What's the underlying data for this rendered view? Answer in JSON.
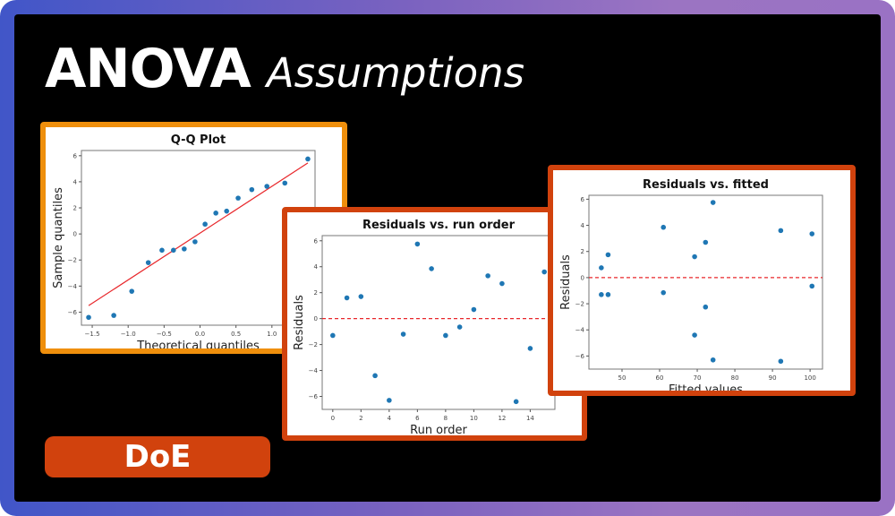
{
  "header": {
    "title_bold": "ANOVA",
    "title_italic": "Assumptions"
  },
  "badge": {
    "label": "DoE"
  },
  "colors": {
    "qq_border": "#ef8f0c",
    "residual_border": "#d1420d",
    "point": "#1f77b4",
    "reference_line": "#e8272b",
    "badge": "#d1420d"
  },
  "chart_data": [
    {
      "id": "qq",
      "type": "scatter",
      "title": "Q-Q Plot",
      "xlabel": "Theoretical quantiles",
      "ylabel": "Sample quantiles",
      "xlim": [
        -1.65,
        1.6
      ],
      "ylim": [
        -7,
        6.4
      ],
      "xticks": [
        -1.5,
        -1.0,
        -0.5,
        0.0,
        0.5,
        1.0
      ],
      "xtick_labels": [
        "−1.5",
        "−1.0",
        "−0.5",
        "0.0",
        "0.5",
        "1.0"
      ],
      "yticks": [
        -6,
        -4,
        -2,
        0,
        2,
        4,
        6
      ],
      "ytick_labels": [
        "−6",
        "−4",
        "−2",
        "0",
        "2",
        "4",
        "6"
      ],
      "x": [
        -1.55,
        -1.2,
        -0.95,
        -0.72,
        -0.53,
        -0.37,
        -0.22,
        -0.07,
        0.07,
        0.22,
        0.37,
        0.53,
        0.72,
        0.93,
        1.18,
        1.5
      ],
      "y": [
        -6.4,
        -6.25,
        -4.4,
        -2.2,
        -1.25,
        -1.25,
        -1.15,
        -0.6,
        0.75,
        1.6,
        1.75,
        2.75,
        3.4,
        3.65,
        3.9,
        5.75
      ],
      "reference_line": {
        "style": "solid",
        "points": [
          [
            -1.55,
            -5.5
          ],
          [
            1.5,
            5.45
          ]
        ]
      },
      "grid": false
    },
    {
      "id": "run_order",
      "type": "scatter",
      "title": "Residuals vs. run order",
      "xlabel": "Run order",
      "ylabel": "Residuals",
      "xlim": [
        -0.75,
        15.75
      ],
      "ylim": [
        -7,
        6.4
      ],
      "xticks": [
        0,
        2,
        4,
        6,
        8,
        10,
        12,
        14
      ],
      "xtick_labels": [
        "0",
        "2",
        "4",
        "6",
        "8",
        "10",
        "12",
        "14"
      ],
      "yticks": [
        -6,
        -4,
        -2,
        0,
        2,
        4,
        6
      ],
      "ytick_labels": [
        "−6",
        "−4",
        "−2",
        "0",
        "2",
        "4",
        "6"
      ],
      "x": [
        0,
        1,
        2,
        3,
        4,
        5,
        6,
        7,
        8,
        9,
        10,
        11,
        12,
        13,
        14,
        15
      ],
      "y": [
        -1.3,
        1.6,
        1.7,
        -4.4,
        -6.3,
        -1.2,
        5.75,
        3.85,
        -1.3,
        -0.65,
        0.7,
        3.3,
        2.7,
        -6.4,
        -2.3,
        3.6
      ],
      "reference_line": {
        "style": "dashed",
        "y": 0
      },
      "grid": false
    },
    {
      "id": "fitted",
      "type": "scatter",
      "title": "Residuals vs. fitted",
      "xlabel": "Fitted values",
      "ylabel": "Residuals",
      "xlim": [
        41.2,
        103.3
      ],
      "ylim": [
        -7,
        6.3
      ],
      "xticks": [
        50,
        60,
        70,
        80,
        90,
        100
      ],
      "xtick_labels": [
        "50",
        "60",
        "70",
        "80",
        "90",
        "100"
      ],
      "yticks": [
        -6,
        -4,
        -2,
        0,
        2,
        4,
        6
      ],
      "ytick_labels": [
        "−6",
        "−4",
        "−2",
        "0",
        "2",
        "4",
        "6"
      ],
      "x": [
        44.5,
        44.5,
        46.3,
        46.3,
        61,
        61,
        69.3,
        69.3,
        72.2,
        72.2,
        74.2,
        74.2,
        92.2,
        92.2,
        100.5,
        100.5
      ],
      "y": [
        0.75,
        -1.3,
        1.75,
        -1.3,
        3.85,
        -1.15,
        1.6,
        -4.4,
        2.7,
        -2.25,
        5.75,
        -6.3,
        3.6,
        -6.4,
        3.35,
        -0.65
      ],
      "reference_line": {
        "style": "dashed",
        "y": 0
      },
      "grid": false
    }
  ]
}
